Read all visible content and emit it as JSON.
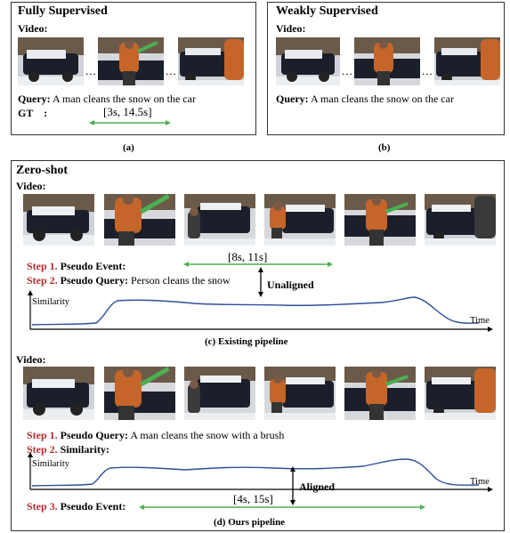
{
  "panel_a": {
    "title": "Fully Supervised",
    "video_label": "Video:",
    "dots": "...",
    "query_label": "Query:",
    "query_text": "A man cleans the snow on the car",
    "gt_label": "GT    :",
    "gt_interval": "[3s, 14.5s]",
    "caption": "(a)"
  },
  "panel_b": {
    "title": "Weakly Supervised",
    "video_label": "Video:",
    "dots": "...",
    "query_label": "Query:",
    "query_text": "A man cleans the snow on the car",
    "caption": "(b)"
  },
  "panel_c": {
    "title": "Zero-shot",
    "video_label": "Video:",
    "step1_label": "Step 1.",
    "step1_text": "Pseudo Event:",
    "interval": "[8s, 11s]",
    "step2_label": "Step 2.",
    "step2_text": "Pseudo Query:",
    "step2_value": "Person cleans the snow",
    "unaligned": "Unaligned",
    "y_label": "Similarity",
    "x_label": "Time",
    "caption": "(c) Existing pipeline"
  },
  "panel_d": {
    "video_label": "Video:",
    "step1_label": "Step 1.",
    "step1_text": "Pseudo Query:",
    "step1_value": "A man cleans the snow with a brush",
    "step2_label": "Step 2.",
    "step2_text": "Similarity:",
    "y_label": "Similarity",
    "x_label": "Time",
    "aligned": "Aligned",
    "interval": "[4s, 15s]",
    "step3_label": "Step 3.",
    "step3_text": "Pseudo Event:",
    "caption": "(d) Ours pipeline"
  },
  "colors": {
    "arrow_green": "#4caf50",
    "curve_blue": "#2f4f9a",
    "step_red": "#b42a2a"
  }
}
